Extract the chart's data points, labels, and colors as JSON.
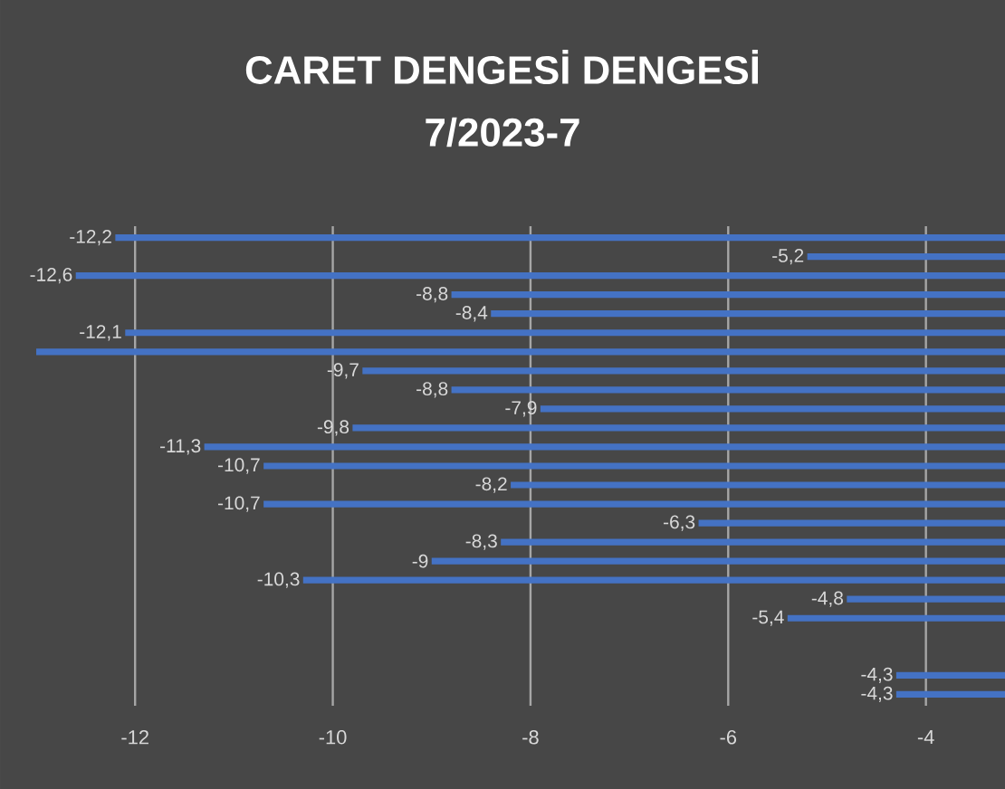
{
  "chart_data": {
    "type": "bar",
    "orientation": "horizontal",
    "title": "CARET DENGESİ DENGESİ",
    "subtitle": "7/2023-7",
    "categories": [
      null,
      null,
      null,
      null,
      null,
      null,
      null,
      null,
      null,
      null,
      null,
      null,
      null,
      null,
      null,
      null,
      null,
      null,
      null,
      null,
      null,
      null,
      null,
      null,
      null
    ],
    "values": [
      -12.2,
      -5.2,
      -12.6,
      -8.8,
      -8.4,
      -12.1,
      -13,
      -9.7,
      -8.8,
      -7.9,
      -9.8,
      -11.3,
      -10.7,
      -8.2,
      -10.7,
      -6.3,
      -8.3,
      -9,
      -10.3,
      -4.8,
      -5.4,
      null,
      null,
      -4.3,
      -4.3
    ],
    "value_labels": [
      "-12,2",
      "-5,2",
      "-12,6",
      "-8,8",
      "-8,4",
      "-12,1",
      null,
      "-9,7",
      "-8,8",
      "-7,9",
      "-9,8",
      "-11,3",
      "-10,7",
      "-8,2",
      "-10,7",
      "-6,3",
      "-8,3",
      "-9",
      "-10,3",
      "-4,8",
      "-5,4",
      null,
      null,
      "-4,3",
      "-4,3"
    ],
    "color": "#4472c4",
    "xlim": [
      -13,
      -3.2
    ],
    "xticks": [
      -12,
      -10,
      -8,
      -6,
      -4
    ],
    "grid": "x"
  }
}
